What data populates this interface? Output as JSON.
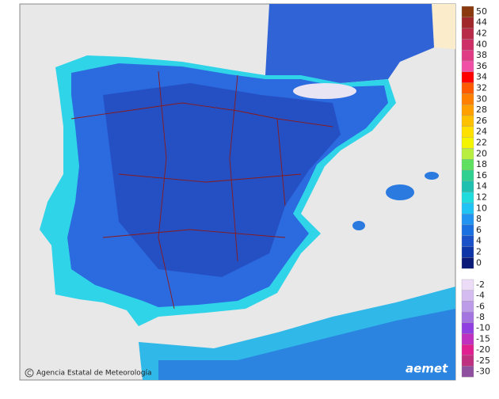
{
  "legend": {
    "items": [
      {
        "label": 50,
        "color": "#8b3a10"
      },
      {
        "label": 44,
        "color": "#a0282a"
      },
      {
        "label": 42,
        "color": "#b82c4a"
      },
      {
        "label": 40,
        "color": "#cc3066"
      },
      {
        "label": 38,
        "color": "#e03c86"
      },
      {
        "label": 36,
        "color": "#f050a6"
      },
      {
        "label": 34,
        "color": "#ff0000"
      },
      {
        "label": 32,
        "color": "#ff5a00"
      },
      {
        "label": 30,
        "color": "#ff8000"
      },
      {
        "label": 28,
        "color": "#ffa000"
      },
      {
        "label": 26,
        "color": "#ffc000"
      },
      {
        "label": 24,
        "color": "#ffe000"
      },
      {
        "label": 22,
        "color": "#f4f400"
      },
      {
        "label": 20,
        "color": "#b8ee40"
      },
      {
        "label": 18,
        "color": "#60e060"
      },
      {
        "label": 16,
        "color": "#30d090"
      },
      {
        "label": 14,
        "color": "#20c0b0"
      },
      {
        "label": 12,
        "color": "#20dcdc"
      },
      {
        "label": 10,
        "color": "#20c4f4"
      },
      {
        "label": 8,
        "color": "#2094f0"
      },
      {
        "label": 6,
        "color": "#1a70e0"
      },
      {
        "label": 4,
        "color": "#1a50c8"
      },
      {
        "label": 2,
        "color": "#0e35a8"
      },
      {
        "label": 0,
        "color": "#0a1a78"
      }
    ],
    "negative_items": [
      {
        "label": -2,
        "color": "#ecdcf8"
      },
      {
        "label": -4,
        "color": "#d4bcf0"
      },
      {
        "label": -6,
        "color": "#bc9ce8"
      },
      {
        "label": -8,
        "color": "#a474e0"
      },
      {
        "label": -10,
        "color": "#9040e0"
      },
      {
        "label": -15,
        "color": "#c030c0"
      },
      {
        "label": -20,
        "color": "#e02090"
      },
      {
        "label": -25,
        "color": "#c03080"
      },
      {
        "label": -30,
        "color": "#9050a0"
      }
    ]
  },
  "attribution": "Agencia Estatal de Meteorología",
  "logo": "aemet"
}
